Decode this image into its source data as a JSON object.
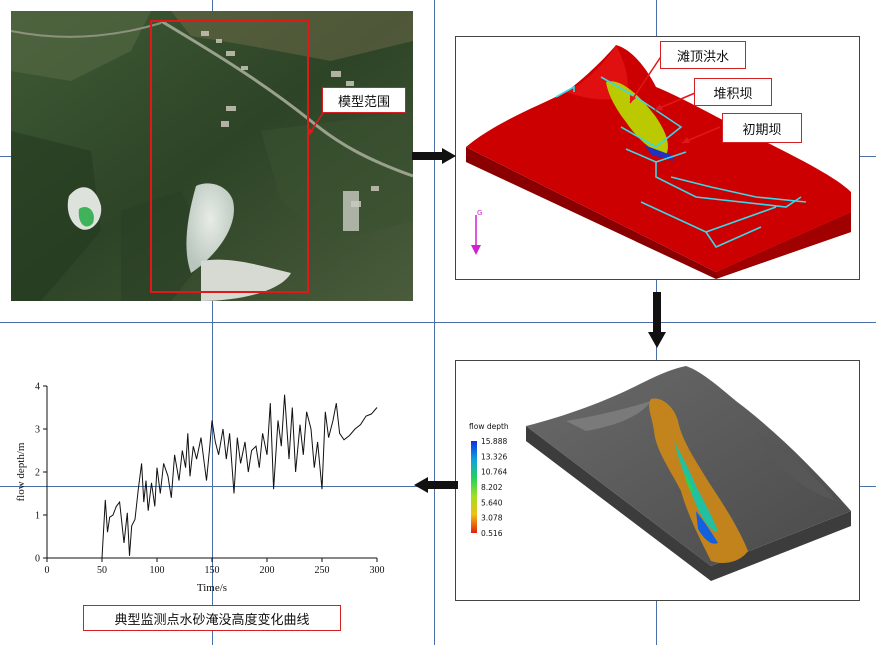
{
  "satellite": {
    "label": "模型范围"
  },
  "model3d": {
    "labels": {
      "beach_flood": "滩顶洪水",
      "pile_dam": "堆积坝",
      "initial_dam": "初期坝"
    },
    "axis_label": "G",
    "colors": {
      "terrain": "#cc0000",
      "dam": "#b8d400",
      "cyan": "#38d8e8"
    }
  },
  "flow_sim": {
    "legend_title": "flow depth",
    "legend_values": [
      "15.888",
      "13.326",
      "10.764",
      "8.202",
      "5.640",
      "3.078",
      "0.516"
    ]
  },
  "chart_caption": "典型监测点水砂淹没高度变化曲线",
  "chart_data": {
    "type": "line",
    "title": "",
    "xlabel": "Time/s",
    "ylabel": "flow depth/m",
    "xlim": [
      0,
      300
    ],
    "ylim": [
      0,
      4
    ],
    "xticks": [
      0,
      50,
      100,
      150,
      200,
      250,
      300
    ],
    "yticks": [
      0,
      1,
      2,
      3,
      4
    ],
    "series": [
      {
        "x": [
          0,
          20,
          40,
          50,
          53,
          55,
          57,
          60,
          63,
          66,
          70,
          73,
          75,
          77,
          80,
          83,
          86,
          88,
          90,
          92,
          95,
          98,
          100,
          103,
          106,
          110,
          113,
          116,
          120,
          123,
          126,
          128,
          130,
          133,
          136,
          140,
          143,
          145,
          148,
          150,
          153,
          156,
          160,
          163,
          166,
          170,
          173,
          176,
          180,
          183,
          186,
          190,
          193,
          196,
          200,
          203,
          206,
          210,
          213,
          216,
          220,
          223,
          226,
          230,
          233,
          236,
          240,
          243,
          246,
          250,
          253,
          256,
          260,
          263,
          266,
          270,
          275,
          280,
          285,
          290,
          295,
          300
        ],
        "values": [
          0,
          0,
          0,
          0,
          1.35,
          0.6,
          0.95,
          1.0,
          1.2,
          1.3,
          0.35,
          1.05,
          0.05,
          0.75,
          0.9,
          1.6,
          2.2,
          1.3,
          1.8,
          1.1,
          1.75,
          1.2,
          2.1,
          1.5,
          2.2,
          1.9,
          1.4,
          2.4,
          1.8,
          2.5,
          2.1,
          2.9,
          1.9,
          2.6,
          2.3,
          2.8,
          2.2,
          1.8,
          2.6,
          3.2,
          2.7,
          2.4,
          3.0,
          2.3,
          2.9,
          1.5,
          2.8,
          2.2,
          2.7,
          2.0,
          2.5,
          2.6,
          2.1,
          2.9,
          2.4,
          3.6,
          1.6,
          3.2,
          2.6,
          3.8,
          2.3,
          3.5,
          2.0,
          3.1,
          2.4,
          3.4,
          3.0,
          2.1,
          2.7,
          1.6,
          3.4,
          2.8,
          3.2,
          3.6,
          2.9,
          2.75,
          2.85,
          3.0,
          3.1,
          3.3,
          3.35,
          3.5
        ]
      }
    ]
  }
}
